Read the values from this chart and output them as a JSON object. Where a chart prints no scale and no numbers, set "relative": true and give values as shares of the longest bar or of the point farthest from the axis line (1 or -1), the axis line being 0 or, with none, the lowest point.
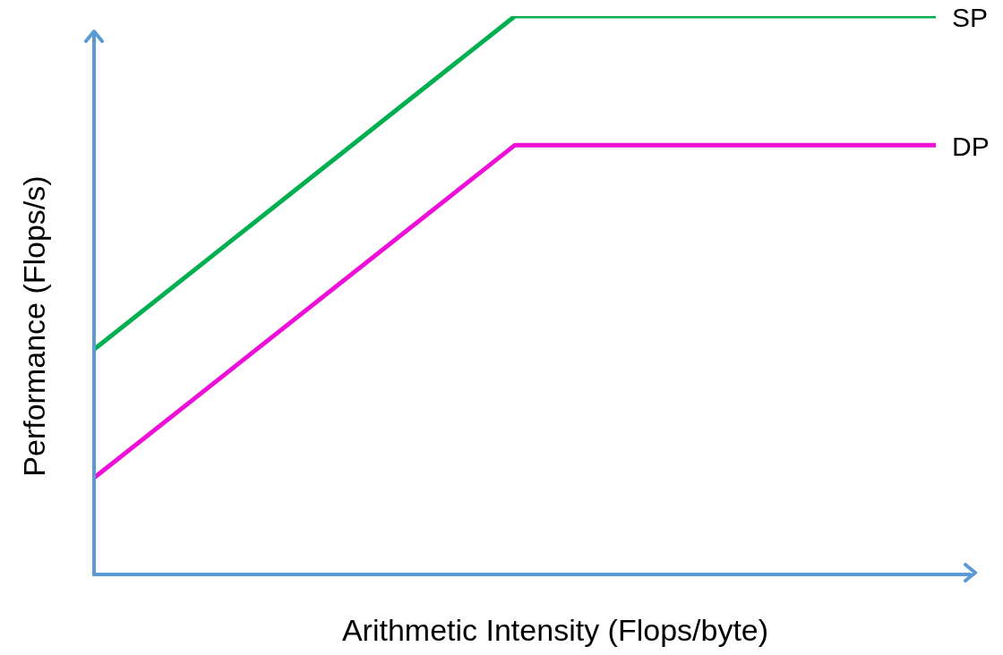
{
  "chart_data": {
    "type": "line",
    "relative": true,
    "xlabel": "Arithmetic Intensity (Flops/byte)",
    "ylabel": "Performance (Flops/s)",
    "categories": [
      null,
      null,
      null
    ],
    "legend": false,
    "marker": "none",
    "line_style": "solid",
    "series": [
      {
        "name": "SP",
        "color": "#00b050",
        "values": [
          0.403,
          1,
          1
        ]
      },
      {
        "name": "DP",
        "color": "#ee10d8",
        "values": [
          0.173,
          0.769,
          0.769
        ]
      }
    ]
  }
}
